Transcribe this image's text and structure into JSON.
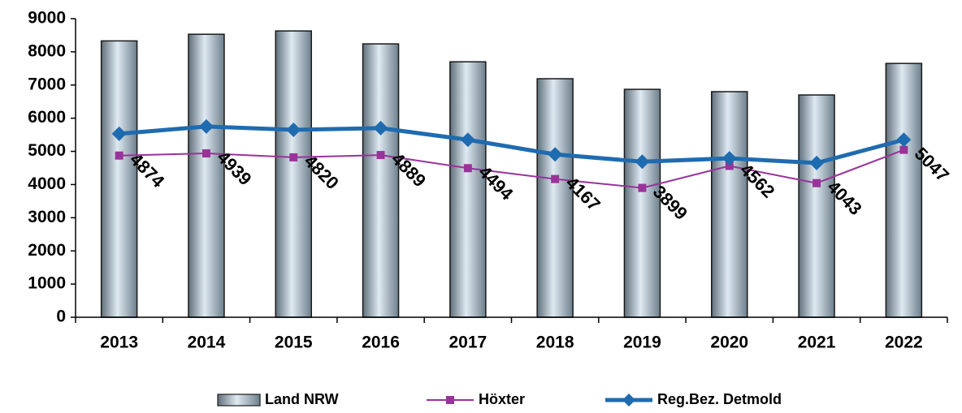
{
  "chart_data": {
    "type": "bar-line",
    "categories": [
      "2013",
      "2014",
      "2015",
      "2016",
      "2017",
      "2018",
      "2019",
      "2020",
      "2021",
      "2022"
    ],
    "series": [
      {
        "name": "Land NRW",
        "type": "bar",
        "color": "#b8cbd8",
        "values": [
          8330,
          8530,
          8630,
          8240,
          7700,
          7190,
          6870,
          6800,
          6700,
          7650
        ]
      },
      {
        "name": "Höxter",
        "type": "line",
        "marker": "square",
        "color": "#993399",
        "values": [
          4874,
          4939,
          4820,
          4889,
          4494,
          4167,
          3899,
          4562,
          4043,
          5047
        ]
      },
      {
        "name": "Reg.Bez. Detmold",
        "type": "line",
        "marker": "diamond",
        "color": "#1f6bb0",
        "values": [
          5530,
          5750,
          5650,
          5700,
          5350,
          4910,
          4690,
          4790,
          4650,
          5350
        ]
      }
    ],
    "ylim": [
      0,
      9000
    ],
    "yticks": [
      0,
      1000,
      2000,
      3000,
      4000,
      5000,
      6000,
      7000,
      8000,
      9000
    ],
    "data_labels_series": 1,
    "legend": "bottom"
  }
}
